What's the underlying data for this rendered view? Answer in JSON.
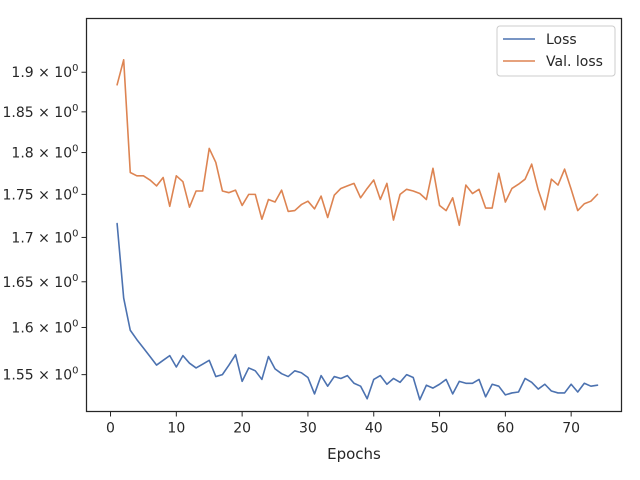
{
  "chart_data": {
    "type": "line",
    "xlabel": "Epochs",
    "ylabel": "",
    "title": "",
    "y_scale": "log",
    "xlim": [
      -3.65,
      77.65
    ],
    "ylim": [
      1.512,
      1.97
    ],
    "x_ticks": [
      0,
      10,
      20,
      30,
      40,
      50,
      60,
      70
    ],
    "x_tick_labels": [
      "0",
      "10",
      "20",
      "30",
      "40",
      "50",
      "60",
      "70"
    ],
    "y_ticks": [
      1.55,
      1.6,
      1.65,
      1.7,
      1.75,
      1.8,
      1.85,
      1.9
    ],
    "y_tick_labels": [
      {
        "mantissa": "1.55",
        "base": "10",
        "exp": "0"
      },
      {
        "mantissa": "1.6",
        "base": "10",
        "exp": "0"
      },
      {
        "mantissa": "1.65",
        "base": "10",
        "exp": "0"
      },
      {
        "mantissa": "1.7",
        "base": "10",
        "exp": "0"
      },
      {
        "mantissa": "1.75",
        "base": "10",
        "exp": "0"
      },
      {
        "mantissa": "1.8",
        "base": "10",
        "exp": "0"
      },
      {
        "mantissa": "1.85",
        "base": "10",
        "exp": "0"
      },
      {
        "mantissa": "1.9",
        "base": "10",
        "exp": "0"
      }
    ],
    "grid": false,
    "legend_position": "top-right",
    "x": [
      1,
      2,
      3,
      4,
      5,
      6,
      7,
      8,
      9,
      10,
      11,
      12,
      13,
      14,
      15,
      16,
      17,
      18,
      19,
      20,
      21,
      22,
      23,
      24,
      25,
      26,
      27,
      28,
      29,
      30,
      31,
      32,
      33,
      34,
      35,
      36,
      37,
      38,
      39,
      40,
      41,
      42,
      43,
      44,
      45,
      46,
      47,
      48,
      49,
      50,
      51,
      52,
      53,
      54,
      55,
      56,
      57,
      58,
      59,
      60,
      61,
      62,
      63,
      64,
      65,
      66,
      67,
      68,
      69,
      70,
      71,
      72,
      73,
      74
    ],
    "series": [
      {
        "name": "Loss",
        "color": "#4c72b0",
        "values": [
          1.716,
          1.632,
          1.597,
          1.587,
          1.578,
          1.569,
          1.56,
          1.565,
          1.57,
          1.558,
          1.57,
          1.562,
          1.557,
          1.561,
          1.565,
          1.548,
          1.55,
          1.56,
          1.571,
          1.543,
          1.557,
          1.554,
          1.545,
          1.569,
          1.556,
          1.551,
          1.548,
          1.554,
          1.552,
          1.547,
          1.53,
          1.549,
          1.538,
          1.548,
          1.546,
          1.549,
          1.541,
          1.538,
          1.525,
          1.545,
          1.549,
          1.54,
          1.546,
          1.542,
          1.55,
          1.547,
          1.524,
          1.539,
          1.536,
          1.54,
          1.545,
          1.53,
          1.543,
          1.541,
          1.541,
          1.545,
          1.527,
          1.54,
          1.538,
          1.529,
          1.531,
          1.532,
          1.546,
          1.542,
          1.535,
          1.54,
          1.533,
          1.531,
          1.531,
          1.54,
          1.532,
          1.541,
          1.538,
          1.539
        ]
      },
      {
        "name": "Val. loss",
        "color": "#dd8452",
        "values": [
          1.884,
          1.916,
          1.776,
          1.772,
          1.772,
          1.767,
          1.76,
          1.77,
          1.736,
          1.772,
          1.765,
          1.735,
          1.754,
          1.754,
          1.805,
          1.788,
          1.754,
          1.752,
          1.755,
          1.737,
          1.75,
          1.75,
          1.721,
          1.744,
          1.741,
          1.755,
          1.73,
          1.731,
          1.738,
          1.742,
          1.733,
          1.748,
          1.723,
          1.749,
          1.757,
          1.76,
          1.763,
          1.746,
          1.757,
          1.767,
          1.744,
          1.763,
          1.72,
          1.75,
          1.756,
          1.754,
          1.751,
          1.744,
          1.781,
          1.737,
          1.731,
          1.746,
          1.714,
          1.761,
          1.751,
          1.756,
          1.734,
          1.734,
          1.775,
          1.741,
          1.757,
          1.762,
          1.768,
          1.786,
          1.755,
          1.732,
          1.768,
          1.761,
          1.78,
          1.756,
          1.731,
          1.739,
          1.742,
          1.75
        ]
      }
    ]
  }
}
